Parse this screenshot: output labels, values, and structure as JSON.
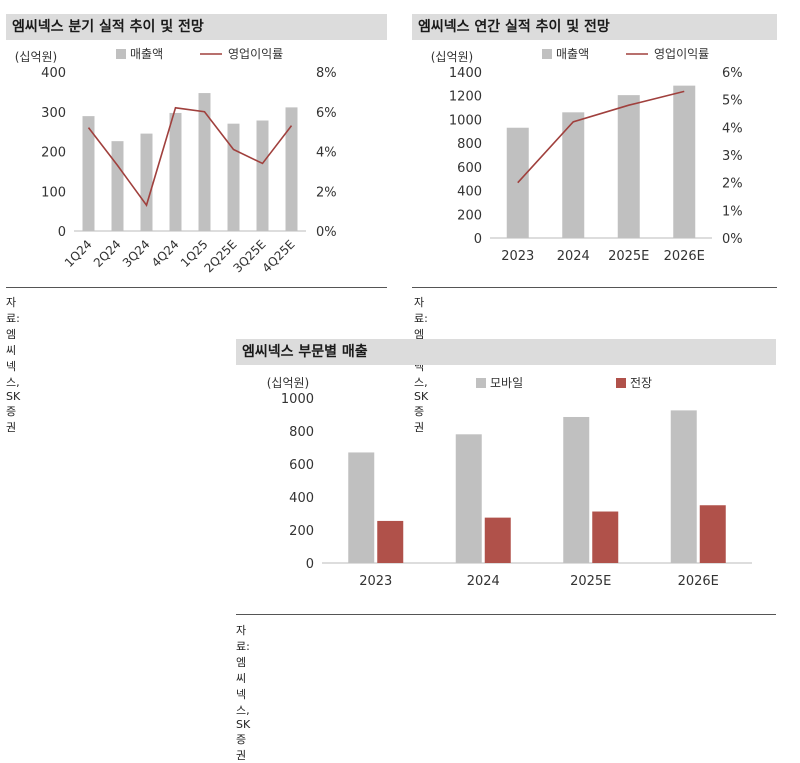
{
  "charts": {
    "quarterly": {
      "title": "엠씨넥스 분기 실적 추이 및 전망",
      "source": "자료: 엠씨넥스, SK 증권"
    },
    "annual": {
      "title": "엠씨넥스 연간 실적 추이 및 전망",
      "source": "자료: 엠씨넥스, SK 증권"
    },
    "segment": {
      "title": "엠씨넥스 부문별 매출",
      "source": "자료: 엠씨넥스, SK 증권"
    }
  },
  "chart_data": [
    {
      "id": "quarterly",
      "type": "bar",
      "title": "엠씨넥스 분기 실적 추이 및 전망",
      "unit_label": "(십억원)",
      "categories": [
        "1Q24",
        "2Q24",
        "3Q24",
        "4Q24",
        "1Q25",
        "2Q25E",
        "3Q25E",
        "4Q25E"
      ],
      "series": [
        {
          "name": "매출액",
          "kind": "bar",
          "axis": "left",
          "color": "#c0c0c0",
          "values": [
            289,
            226,
            245,
            297,
            347,
            270,
            278,
            311
          ]
        },
        {
          "name": "영업이익률",
          "kind": "line",
          "axis": "right",
          "color": "#a0403d",
          "values": [
            5.2,
            3.3,
            1.3,
            6.2,
            6.0,
            4.1,
            3.4,
            5.3
          ]
        }
      ],
      "ylim_left": [
        0,
        400
      ],
      "yticks_left": [
        0,
        100,
        200,
        300,
        400
      ],
      "ylim_right": [
        0,
        8
      ],
      "yticks_right": [
        "0%",
        "2%",
        "4%",
        "6%",
        "8%"
      ],
      "legend": "top",
      "grid": false
    },
    {
      "id": "annual",
      "type": "bar",
      "title": "엠씨넥스 연간 실적 추이 및 전망",
      "unit_label": "(십억원)",
      "categories": [
        "2023",
        "2024",
        "2025E",
        "2026E"
      ],
      "series": [
        {
          "name": "매출액",
          "kind": "bar",
          "axis": "left",
          "color": "#c0c0c0",
          "values": [
            930,
            1060,
            1205,
            1285
          ]
        },
        {
          "name": "영업이익률",
          "kind": "line",
          "axis": "right",
          "color": "#a0403d",
          "values": [
            2.0,
            4.2,
            4.8,
            5.3
          ]
        }
      ],
      "ylim_left": [
        0,
        1400
      ],
      "yticks_left": [
        0,
        200,
        400,
        600,
        800,
        1000,
        1200,
        1400
      ],
      "ylim_right": [
        0,
        6
      ],
      "yticks_right": [
        "0%",
        "1%",
        "2%",
        "3%",
        "4%",
        "5%",
        "6%"
      ],
      "legend": "top",
      "grid": false
    },
    {
      "id": "segment",
      "type": "bar",
      "title": "엠씨넥스 부문별 매출",
      "unit_label": "(십억원)",
      "categories": [
        "2023",
        "2024",
        "2025E",
        "2026E"
      ],
      "series": [
        {
          "name": "모바일",
          "kind": "bar",
          "axis": "left",
          "color": "#c0c0c0",
          "values": [
            670,
            780,
            885,
            925
          ]
        },
        {
          "name": "전장",
          "kind": "bar",
          "axis": "left",
          "color": "#b0514a",
          "values": [
            255,
            275,
            312,
            350
          ]
        }
      ],
      "ylim_left": [
        0,
        1000
      ],
      "yticks_left": [
        0,
        200,
        400,
        600,
        800,
        1000
      ],
      "legend": "top",
      "grid": false
    }
  ]
}
